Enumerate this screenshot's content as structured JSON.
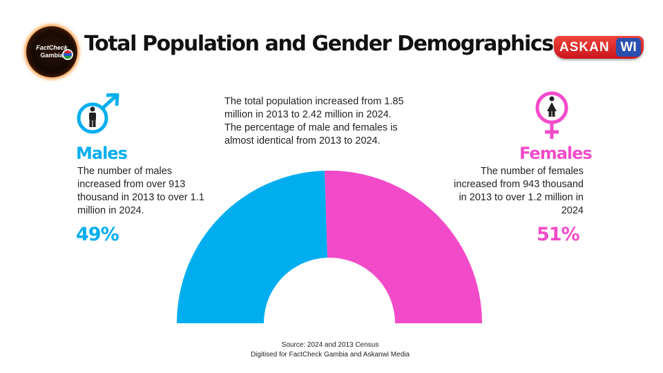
{
  "header": {
    "title": "Total Population and Gender Demographics",
    "logo_left": {
      "line1": "FactCheck",
      "line2": "Gambia"
    },
    "logo_right": {
      "part1": "ASKAN",
      "part2": "WI"
    }
  },
  "summary": {
    "line1": "The total population increased from 1.85 million in 2013 to 2.42 million in 2024.",
    "line2": "The percentage of male and females is almost identical from 2013 to 2024."
  },
  "males": {
    "heading": "Males",
    "description": "The number of males increased from over 913 thousand in 2013 to over 1.1 million in 2024.",
    "percent_label": "49%"
  },
  "females": {
    "heading": "Females",
    "description": "The number of females increased from 943 thousand in 2013 to over 1.2 million in 2024",
    "percent_label": "51%"
  },
  "icons": {
    "male": "male-symbol-icon",
    "female": "female-symbol-icon"
  },
  "colors": {
    "male": "#00aeef",
    "female": "#f24bc9"
  },
  "chart_data": {
    "type": "pie",
    "variant": "half-donut",
    "categories": [
      "Males",
      "Females"
    ],
    "values": [
      49,
      51
    ],
    "colors": [
      "#00aeef",
      "#f24bc9"
    ]
  },
  "footer": {
    "source": "Source: 2024 and 2013 Census",
    "credit": "Digitised for FactCheck Gambia and Askanwi Media"
  }
}
